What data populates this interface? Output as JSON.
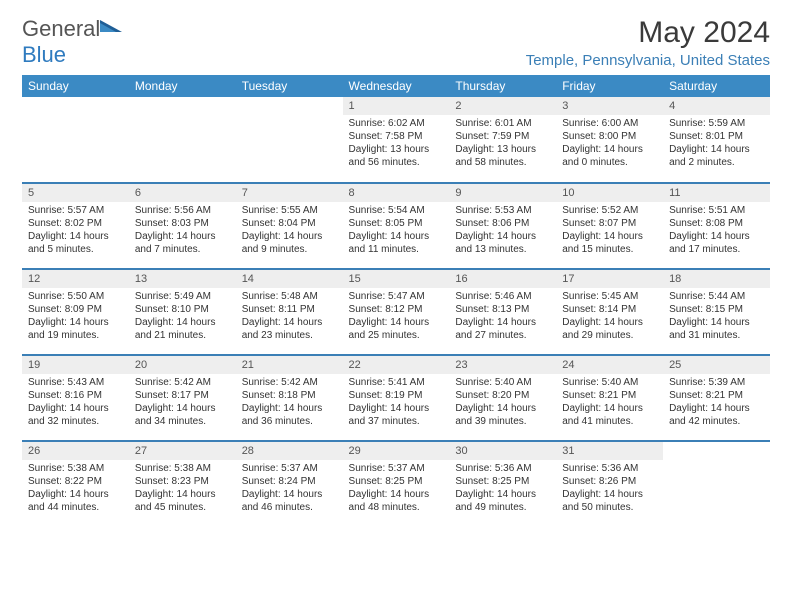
{
  "logo": {
    "text1": "General",
    "text2": "Blue"
  },
  "title": "May 2024",
  "location": "Temple, Pennsylvania, United States",
  "day_headers": [
    "Sunday",
    "Monday",
    "Tuesday",
    "Wednesday",
    "Thursday",
    "Friday",
    "Saturday"
  ],
  "colors": {
    "header_bg": "#3b8ac4",
    "header_text": "#ffffff",
    "daynum_bg": "#eeeeee",
    "row_divider": "#3b7fb6",
    "accent": "#3b7fb6",
    "body_text": "#333333"
  },
  "weeks": [
    [
      {
        "day": "",
        "sunrise": "",
        "sunset": "",
        "daylight": ""
      },
      {
        "day": "",
        "sunrise": "",
        "sunset": "",
        "daylight": ""
      },
      {
        "day": "",
        "sunrise": "",
        "sunset": "",
        "daylight": ""
      },
      {
        "day": "1",
        "sunrise": "Sunrise: 6:02 AM",
        "sunset": "Sunset: 7:58 PM",
        "daylight": "Daylight: 13 hours and 56 minutes."
      },
      {
        "day": "2",
        "sunrise": "Sunrise: 6:01 AM",
        "sunset": "Sunset: 7:59 PM",
        "daylight": "Daylight: 13 hours and 58 minutes."
      },
      {
        "day": "3",
        "sunrise": "Sunrise: 6:00 AM",
        "sunset": "Sunset: 8:00 PM",
        "daylight": "Daylight: 14 hours and 0 minutes."
      },
      {
        "day": "4",
        "sunrise": "Sunrise: 5:59 AM",
        "sunset": "Sunset: 8:01 PM",
        "daylight": "Daylight: 14 hours and 2 minutes."
      }
    ],
    [
      {
        "day": "5",
        "sunrise": "Sunrise: 5:57 AM",
        "sunset": "Sunset: 8:02 PM",
        "daylight": "Daylight: 14 hours and 5 minutes."
      },
      {
        "day": "6",
        "sunrise": "Sunrise: 5:56 AM",
        "sunset": "Sunset: 8:03 PM",
        "daylight": "Daylight: 14 hours and 7 minutes."
      },
      {
        "day": "7",
        "sunrise": "Sunrise: 5:55 AM",
        "sunset": "Sunset: 8:04 PM",
        "daylight": "Daylight: 14 hours and 9 minutes."
      },
      {
        "day": "8",
        "sunrise": "Sunrise: 5:54 AM",
        "sunset": "Sunset: 8:05 PM",
        "daylight": "Daylight: 14 hours and 11 minutes."
      },
      {
        "day": "9",
        "sunrise": "Sunrise: 5:53 AM",
        "sunset": "Sunset: 8:06 PM",
        "daylight": "Daylight: 14 hours and 13 minutes."
      },
      {
        "day": "10",
        "sunrise": "Sunrise: 5:52 AM",
        "sunset": "Sunset: 8:07 PM",
        "daylight": "Daylight: 14 hours and 15 minutes."
      },
      {
        "day": "11",
        "sunrise": "Sunrise: 5:51 AM",
        "sunset": "Sunset: 8:08 PM",
        "daylight": "Daylight: 14 hours and 17 minutes."
      }
    ],
    [
      {
        "day": "12",
        "sunrise": "Sunrise: 5:50 AM",
        "sunset": "Sunset: 8:09 PM",
        "daylight": "Daylight: 14 hours and 19 minutes."
      },
      {
        "day": "13",
        "sunrise": "Sunrise: 5:49 AM",
        "sunset": "Sunset: 8:10 PM",
        "daylight": "Daylight: 14 hours and 21 minutes."
      },
      {
        "day": "14",
        "sunrise": "Sunrise: 5:48 AM",
        "sunset": "Sunset: 8:11 PM",
        "daylight": "Daylight: 14 hours and 23 minutes."
      },
      {
        "day": "15",
        "sunrise": "Sunrise: 5:47 AM",
        "sunset": "Sunset: 8:12 PM",
        "daylight": "Daylight: 14 hours and 25 minutes."
      },
      {
        "day": "16",
        "sunrise": "Sunrise: 5:46 AM",
        "sunset": "Sunset: 8:13 PM",
        "daylight": "Daylight: 14 hours and 27 minutes."
      },
      {
        "day": "17",
        "sunrise": "Sunrise: 5:45 AM",
        "sunset": "Sunset: 8:14 PM",
        "daylight": "Daylight: 14 hours and 29 minutes."
      },
      {
        "day": "18",
        "sunrise": "Sunrise: 5:44 AM",
        "sunset": "Sunset: 8:15 PM",
        "daylight": "Daylight: 14 hours and 31 minutes."
      }
    ],
    [
      {
        "day": "19",
        "sunrise": "Sunrise: 5:43 AM",
        "sunset": "Sunset: 8:16 PM",
        "daylight": "Daylight: 14 hours and 32 minutes."
      },
      {
        "day": "20",
        "sunrise": "Sunrise: 5:42 AM",
        "sunset": "Sunset: 8:17 PM",
        "daylight": "Daylight: 14 hours and 34 minutes."
      },
      {
        "day": "21",
        "sunrise": "Sunrise: 5:42 AM",
        "sunset": "Sunset: 8:18 PM",
        "daylight": "Daylight: 14 hours and 36 minutes."
      },
      {
        "day": "22",
        "sunrise": "Sunrise: 5:41 AM",
        "sunset": "Sunset: 8:19 PM",
        "daylight": "Daylight: 14 hours and 37 minutes."
      },
      {
        "day": "23",
        "sunrise": "Sunrise: 5:40 AM",
        "sunset": "Sunset: 8:20 PM",
        "daylight": "Daylight: 14 hours and 39 minutes."
      },
      {
        "day": "24",
        "sunrise": "Sunrise: 5:40 AM",
        "sunset": "Sunset: 8:21 PM",
        "daylight": "Daylight: 14 hours and 41 minutes."
      },
      {
        "day": "25",
        "sunrise": "Sunrise: 5:39 AM",
        "sunset": "Sunset: 8:21 PM",
        "daylight": "Daylight: 14 hours and 42 minutes."
      }
    ],
    [
      {
        "day": "26",
        "sunrise": "Sunrise: 5:38 AM",
        "sunset": "Sunset: 8:22 PM",
        "daylight": "Daylight: 14 hours and 44 minutes."
      },
      {
        "day": "27",
        "sunrise": "Sunrise: 5:38 AM",
        "sunset": "Sunset: 8:23 PM",
        "daylight": "Daylight: 14 hours and 45 minutes."
      },
      {
        "day": "28",
        "sunrise": "Sunrise: 5:37 AM",
        "sunset": "Sunset: 8:24 PM",
        "daylight": "Daylight: 14 hours and 46 minutes."
      },
      {
        "day": "29",
        "sunrise": "Sunrise: 5:37 AM",
        "sunset": "Sunset: 8:25 PM",
        "daylight": "Daylight: 14 hours and 48 minutes."
      },
      {
        "day": "30",
        "sunrise": "Sunrise: 5:36 AM",
        "sunset": "Sunset: 8:25 PM",
        "daylight": "Daylight: 14 hours and 49 minutes."
      },
      {
        "day": "31",
        "sunrise": "Sunrise: 5:36 AM",
        "sunset": "Sunset: 8:26 PM",
        "daylight": "Daylight: 14 hours and 50 minutes."
      },
      {
        "day": "",
        "sunrise": "",
        "sunset": "",
        "daylight": ""
      }
    ]
  ]
}
